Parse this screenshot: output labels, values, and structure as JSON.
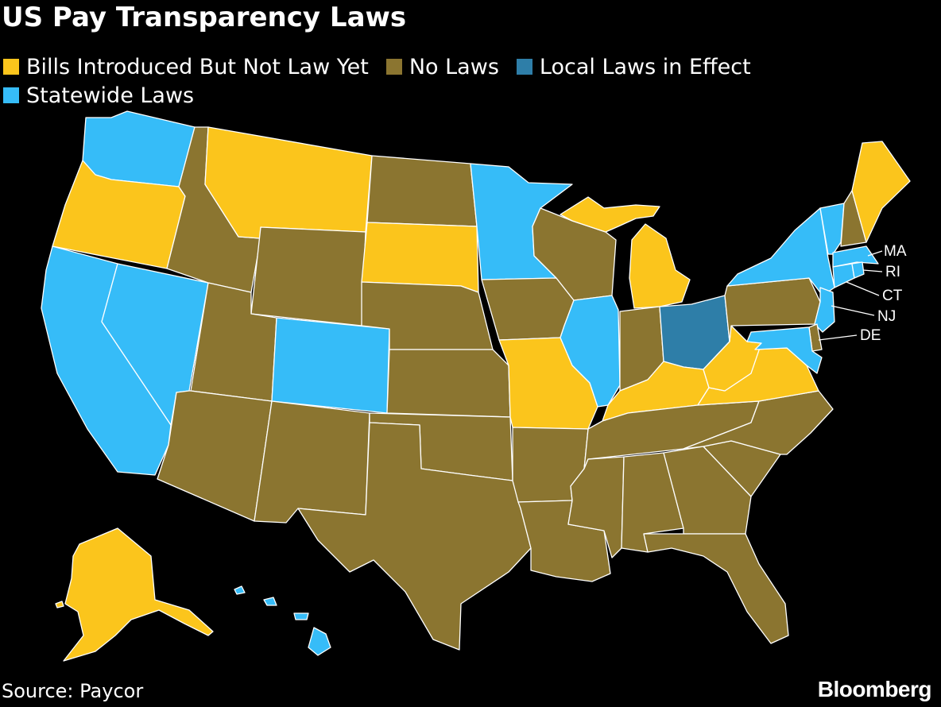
{
  "title": "US Pay Transparency Laws",
  "colors": {
    "bills": "#fbc51c",
    "none": "#8b7530",
    "local": "#2e7ea8",
    "statewide": "#36bcf8",
    "background": "#000000",
    "border": "#ffffff"
  },
  "legend": [
    {
      "key": "bills",
      "label": "Bills Introduced But Not Law Yet",
      "color": "#fbc51c"
    },
    {
      "key": "none",
      "label": "No Laws",
      "color": "#8b7530"
    },
    {
      "key": "local",
      "label": "Local Laws in Effect",
      "color": "#2e7ea8"
    },
    {
      "key": "statewide",
      "label": "Statewide Laws",
      "color": "#36bcf8"
    }
  ],
  "callouts": [
    "MA",
    "RI",
    "CT",
    "NJ",
    "DE"
  ],
  "states": {
    "WA": "statewide",
    "OR": "bills",
    "CA": "statewide",
    "NV": "statewide",
    "ID": "none",
    "MT": "bills",
    "WY": "none",
    "UT": "none",
    "CO": "statewide",
    "AZ": "none",
    "NM": "none",
    "ND": "none",
    "SD": "bills",
    "NE": "none",
    "KS": "none",
    "OK": "none",
    "TX": "none",
    "MN": "statewide",
    "IA": "none",
    "MO": "bills",
    "AR": "none",
    "LA": "none",
    "WI": "none",
    "IL": "statewide",
    "MI": "bills",
    "IN": "none",
    "OH": "local",
    "KY": "bills",
    "TN": "none",
    "MS": "none",
    "AL": "none",
    "GA": "none",
    "FL": "none",
    "SC": "none",
    "NC": "none",
    "VA": "bills",
    "WV": "bills",
    "PA": "none",
    "NY": "statewide",
    "VT": "statewide",
    "NH": "none",
    "ME": "bills",
    "MA": "statewide",
    "RI": "statewide",
    "CT": "statewide",
    "NJ": "statewide",
    "DE": "none",
    "MD": "statewide",
    "AK": "bills",
    "HI": "statewide"
  },
  "source": "Source: Paycor",
  "brand": "Bloomberg"
}
